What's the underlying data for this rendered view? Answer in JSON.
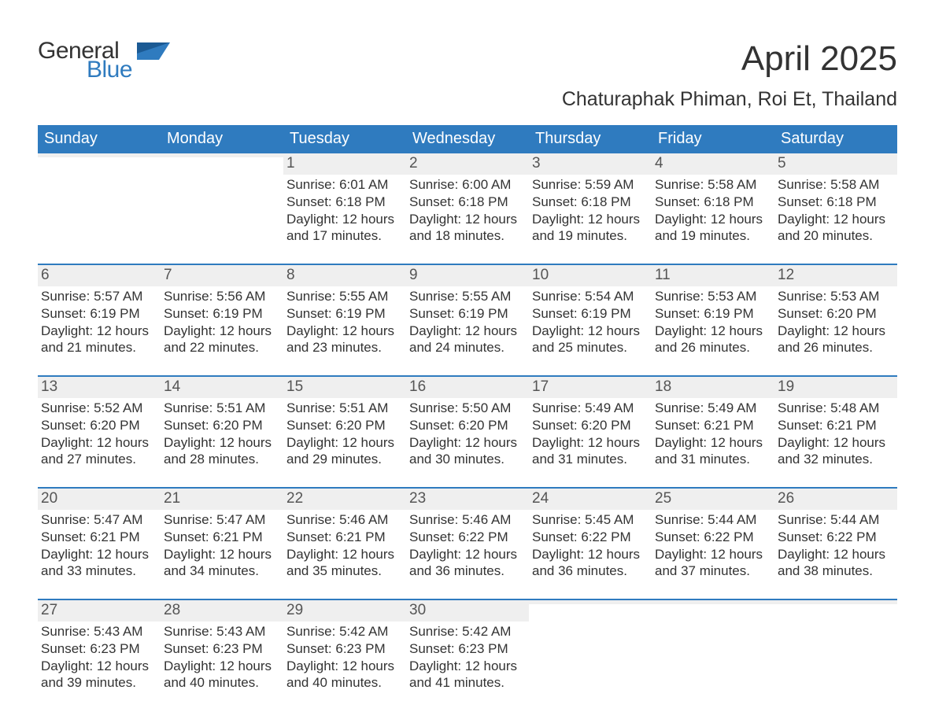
{
  "logo": {
    "general": "General",
    "blue": "Blue"
  },
  "title": "April 2025",
  "subtitle": "Chaturaphak Phiman, Roi Et, Thailand",
  "colors": {
    "header_bg": "#2f7bbf",
    "header_text": "#ffffff",
    "daynum_bg": "#efefef",
    "text": "#333333",
    "week_border": "#2f7bbf",
    "page_bg": "#ffffff"
  },
  "typography": {
    "title_fontsize": 44,
    "subtitle_fontsize": 25,
    "dayhead_fontsize": 20,
    "daynum_fontsize": 19,
    "info_fontsize": 17,
    "font_family": "Arial"
  },
  "day_headers": [
    "Sunday",
    "Monday",
    "Tuesday",
    "Wednesday",
    "Thursday",
    "Friday",
    "Saturday"
  ],
  "weeks": [
    [
      {
        "day": "",
        "sunrise": "",
        "sunset": "",
        "daylight": ""
      },
      {
        "day": "",
        "sunrise": "",
        "sunset": "",
        "daylight": ""
      },
      {
        "day": "1",
        "sunrise": "Sunrise: 6:01 AM",
        "sunset": "Sunset: 6:18 PM",
        "daylight": "Daylight: 12 hours and 17 minutes."
      },
      {
        "day": "2",
        "sunrise": "Sunrise: 6:00 AM",
        "sunset": "Sunset: 6:18 PM",
        "daylight": "Daylight: 12 hours and 18 minutes."
      },
      {
        "day": "3",
        "sunrise": "Sunrise: 5:59 AM",
        "sunset": "Sunset: 6:18 PM",
        "daylight": "Daylight: 12 hours and 19 minutes."
      },
      {
        "day": "4",
        "sunrise": "Sunrise: 5:58 AM",
        "sunset": "Sunset: 6:18 PM",
        "daylight": "Daylight: 12 hours and 19 minutes."
      },
      {
        "day": "5",
        "sunrise": "Sunrise: 5:58 AM",
        "sunset": "Sunset: 6:18 PM",
        "daylight": "Daylight: 12 hours and 20 minutes."
      }
    ],
    [
      {
        "day": "6",
        "sunrise": "Sunrise: 5:57 AM",
        "sunset": "Sunset: 6:19 PM",
        "daylight": "Daylight: 12 hours and 21 minutes."
      },
      {
        "day": "7",
        "sunrise": "Sunrise: 5:56 AM",
        "sunset": "Sunset: 6:19 PM",
        "daylight": "Daylight: 12 hours and 22 minutes."
      },
      {
        "day": "8",
        "sunrise": "Sunrise: 5:55 AM",
        "sunset": "Sunset: 6:19 PM",
        "daylight": "Daylight: 12 hours and 23 minutes."
      },
      {
        "day": "9",
        "sunrise": "Sunrise: 5:55 AM",
        "sunset": "Sunset: 6:19 PM",
        "daylight": "Daylight: 12 hours and 24 minutes."
      },
      {
        "day": "10",
        "sunrise": "Sunrise: 5:54 AM",
        "sunset": "Sunset: 6:19 PM",
        "daylight": "Daylight: 12 hours and 25 minutes."
      },
      {
        "day": "11",
        "sunrise": "Sunrise: 5:53 AM",
        "sunset": "Sunset: 6:19 PM",
        "daylight": "Daylight: 12 hours and 26 minutes."
      },
      {
        "day": "12",
        "sunrise": "Sunrise: 5:53 AM",
        "sunset": "Sunset: 6:20 PM",
        "daylight": "Daylight: 12 hours and 26 minutes."
      }
    ],
    [
      {
        "day": "13",
        "sunrise": "Sunrise: 5:52 AM",
        "sunset": "Sunset: 6:20 PM",
        "daylight": "Daylight: 12 hours and 27 minutes."
      },
      {
        "day": "14",
        "sunrise": "Sunrise: 5:51 AM",
        "sunset": "Sunset: 6:20 PM",
        "daylight": "Daylight: 12 hours and 28 minutes."
      },
      {
        "day": "15",
        "sunrise": "Sunrise: 5:51 AM",
        "sunset": "Sunset: 6:20 PM",
        "daylight": "Daylight: 12 hours and 29 minutes."
      },
      {
        "day": "16",
        "sunrise": "Sunrise: 5:50 AM",
        "sunset": "Sunset: 6:20 PM",
        "daylight": "Daylight: 12 hours and 30 minutes."
      },
      {
        "day": "17",
        "sunrise": "Sunrise: 5:49 AM",
        "sunset": "Sunset: 6:20 PM",
        "daylight": "Daylight: 12 hours and 31 minutes."
      },
      {
        "day": "18",
        "sunrise": "Sunrise: 5:49 AM",
        "sunset": "Sunset: 6:21 PM",
        "daylight": "Daylight: 12 hours and 31 minutes."
      },
      {
        "day": "19",
        "sunrise": "Sunrise: 5:48 AM",
        "sunset": "Sunset: 6:21 PM",
        "daylight": "Daylight: 12 hours and 32 minutes."
      }
    ],
    [
      {
        "day": "20",
        "sunrise": "Sunrise: 5:47 AM",
        "sunset": "Sunset: 6:21 PM",
        "daylight": "Daylight: 12 hours and 33 minutes."
      },
      {
        "day": "21",
        "sunrise": "Sunrise: 5:47 AM",
        "sunset": "Sunset: 6:21 PM",
        "daylight": "Daylight: 12 hours and 34 minutes."
      },
      {
        "day": "22",
        "sunrise": "Sunrise: 5:46 AM",
        "sunset": "Sunset: 6:21 PM",
        "daylight": "Daylight: 12 hours and 35 minutes."
      },
      {
        "day": "23",
        "sunrise": "Sunrise: 5:46 AM",
        "sunset": "Sunset: 6:22 PM",
        "daylight": "Daylight: 12 hours and 36 minutes."
      },
      {
        "day": "24",
        "sunrise": "Sunrise: 5:45 AM",
        "sunset": "Sunset: 6:22 PM",
        "daylight": "Daylight: 12 hours and 36 minutes."
      },
      {
        "day": "25",
        "sunrise": "Sunrise: 5:44 AM",
        "sunset": "Sunset: 6:22 PM",
        "daylight": "Daylight: 12 hours and 37 minutes."
      },
      {
        "day": "26",
        "sunrise": "Sunrise: 5:44 AM",
        "sunset": "Sunset: 6:22 PM",
        "daylight": "Daylight: 12 hours and 38 minutes."
      }
    ],
    [
      {
        "day": "27",
        "sunrise": "Sunrise: 5:43 AM",
        "sunset": "Sunset: 6:23 PM",
        "daylight": "Daylight: 12 hours and 39 minutes."
      },
      {
        "day": "28",
        "sunrise": "Sunrise: 5:43 AM",
        "sunset": "Sunset: 6:23 PM",
        "daylight": "Daylight: 12 hours and 40 minutes."
      },
      {
        "day": "29",
        "sunrise": "Sunrise: 5:42 AM",
        "sunset": "Sunset: 6:23 PM",
        "daylight": "Daylight: 12 hours and 40 minutes."
      },
      {
        "day": "30",
        "sunrise": "Sunrise: 5:42 AM",
        "sunset": "Sunset: 6:23 PM",
        "daylight": "Daylight: 12 hours and 41 minutes."
      },
      {
        "day": "",
        "sunrise": "",
        "sunset": "",
        "daylight": ""
      },
      {
        "day": "",
        "sunrise": "",
        "sunset": "",
        "daylight": ""
      },
      {
        "day": "",
        "sunrise": "",
        "sunset": "",
        "daylight": ""
      }
    ]
  ]
}
